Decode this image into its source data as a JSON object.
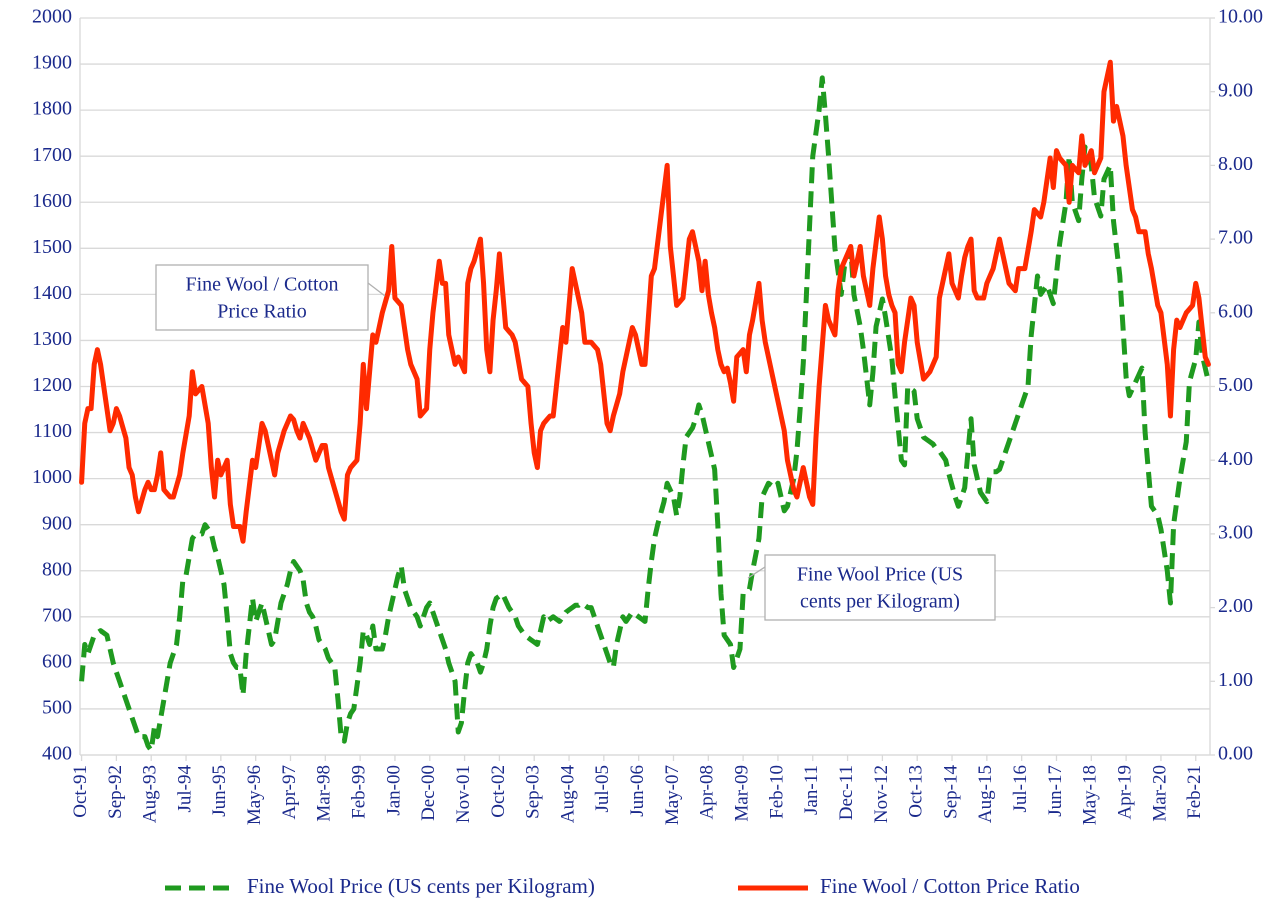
{
  "chart_data": {
    "type": "line",
    "categories": [
      "Oct-91",
      null,
      null,
      null,
      null,
      null,
      null,
      null,
      null,
      null,
      null,
      "Sep-92",
      null,
      null,
      null,
      null,
      null,
      null,
      null,
      null,
      null,
      null,
      "Aug-93",
      null,
      null,
      null,
      null,
      null,
      null,
      null,
      null,
      null,
      null,
      "Jul-94",
      null,
      null,
      null,
      null,
      null,
      null,
      null,
      null,
      null,
      null,
      "Jun-95",
      null,
      null,
      null,
      null,
      null,
      null,
      null,
      null,
      null,
      null,
      "May-96",
      null,
      null,
      null,
      null,
      null,
      null,
      null,
      null,
      null,
      null,
      "Apr-97",
      null,
      null,
      null,
      null,
      null,
      null,
      null,
      null,
      null,
      null,
      "Mar-98",
      null,
      null,
      null,
      null,
      null,
      null,
      null,
      null,
      null,
      null,
      "Feb-99",
      null,
      null,
      null,
      null,
      null,
      null,
      null,
      null,
      null,
      null,
      "Jan-00",
      null,
      null,
      null,
      null,
      null,
      null,
      null,
      null,
      null,
      null,
      "Dec-00",
      null,
      null,
      null,
      null,
      null,
      null,
      null,
      null,
      null,
      null,
      "Nov-01",
      null,
      null,
      null,
      null,
      null,
      null,
      null,
      null,
      null,
      null,
      "Oct-02",
      null,
      null,
      null,
      null,
      null,
      null,
      null,
      null,
      null,
      null,
      "Sep-03",
      null,
      null,
      null,
      null,
      null,
      null,
      null,
      null,
      null,
      null,
      "Aug-04",
      null,
      null,
      null,
      null,
      null,
      null,
      null,
      null,
      null,
      null,
      "Jul-05",
      null,
      null,
      null,
      null,
      null,
      null,
      null,
      null,
      null,
      null,
      "Jun-06",
      null,
      null,
      null,
      null,
      null,
      null,
      null,
      null,
      null,
      null,
      "May-07",
      null,
      null,
      null,
      null,
      null,
      null,
      null,
      null,
      null,
      null,
      "Apr-08",
      null,
      null,
      null,
      null,
      null,
      null,
      null,
      null,
      null,
      null,
      "Mar-09",
      null,
      null,
      null,
      null,
      null,
      null,
      null,
      null,
      null,
      null,
      "Feb-10",
      null,
      null,
      null,
      null,
      null,
      null,
      null,
      null,
      null,
      null,
      "Jan-11",
      null,
      null,
      null,
      null,
      null,
      null,
      null,
      null,
      null,
      null,
      "Dec-11",
      null,
      null,
      null,
      null,
      null,
      null,
      null,
      null,
      null,
      null,
      "Nov-12",
      null,
      null,
      null,
      null,
      null,
      null,
      null,
      null,
      null,
      null,
      "Oct-13",
      null,
      null,
      null,
      null,
      null,
      null,
      null,
      null,
      null,
      null,
      "Sep-14",
      null,
      null,
      null,
      null,
      null,
      null,
      null,
      null,
      null,
      null,
      "Aug-15",
      null,
      null,
      null,
      null,
      null,
      null,
      null,
      null,
      null,
      null,
      "Jul-16",
      null,
      null,
      null,
      null,
      null,
      null,
      null,
      null,
      null,
      null,
      "Jun-17",
      null,
      null,
      null,
      null,
      null,
      null,
      null,
      null,
      null,
      null,
      "May-18",
      null,
      null,
      null,
      null,
      null,
      null,
      null,
      null,
      null,
      null,
      "Apr-19",
      null,
      null,
      null,
      null,
      null,
      null,
      null,
      null,
      null,
      null,
      "Mar-20",
      null,
      null,
      null,
      null,
      null,
      null,
      null,
      null,
      null,
      null,
      "Feb-21",
      null,
      null,
      null,
      null
    ],
    "series": [
      {
        "name": "Fine Wool Price (US cents per Kilogram)",
        "color": "#1f9a1f",
        "dash": true,
        "axis": "y",
        "values": [
          560,
          640,
          620,
          640,
          660,
          665,
          670,
          665,
          660,
          630,
          600,
          580,
          560,
          540,
          520,
          500,
          480,
          460,
          440,
          440,
          440,
          420,
          410,
          460,
          440,
          480,
          520,
          560,
          600,
          620,
          640,
          700,
          780,
          790,
          830,
          870,
          880,
          880,
          880,
          900,
          890,
          880,
          850,
          830,
          800,
          770,
          700,
          620,
          600,
          590,
          590,
          530,
          620,
          680,
          740,
          690,
          710,
          730,
          700,
          670,
          640,
          650,
          690,
          730,
          750,
          770,
          800,
          820,
          810,
          800,
          780,
          730,
          710,
          700,
          680,
          650,
          640,
          630,
          610,
          600,
          590,
          520,
          440,
          430,
          470,
          490,
          500,
          550,
          600,
          670,
          660,
          640,
          680,
          630,
          630,
          630,
          660,
          700,
          730,
          760,
          790,
          810,
          760,
          740,
          720,
          710,
          700,
          680,
          700,
          720,
          730,
          710,
          690,
          670,
          650,
          630,
          600,
          580,
          560,
          450,
          470,
          540,
          600,
          620,
          610,
          600,
          580,
          600,
          630,
          680,
          720,
          740,
          745,
          750,
          735,
          720,
          710,
          700,
          680,
          670,
          660,
          655,
          650,
          645,
          640,
          670,
          700,
          690,
          695,
          700,
          695,
          690,
          700,
          710,
          715,
          720,
          725,
          725,
          730,
          725,
          720,
          720,
          700,
          680,
          660,
          640,
          620,
          600,
          590,
          640,
          670,
          700,
          690,
          700,
          710,
          705,
          700,
          695,
          690,
          760,
          820,
          870,
          900,
          925,
          950,
          990,
          975,
          960,
          920,
          960,
          1030,
          1090,
          1100,
          1110,
          1130,
          1160,
          1140,
          1110,
          1080,
          1050,
          1020,
          900,
          750,
          660,
          650,
          640,
          590,
          610,
          630,
          750,
          755,
          760,
          800,
          835,
          870,
          960,
          975,
          990,
          985,
          980,
          990,
          960,
          930,
          940,
          970,
          1000,
          1060,
          1150,
          1250,
          1400,
          1550,
          1700,
          1750,
          1800,
          1870,
          1790,
          1700,
          1600,
          1500,
          1450,
          1400,
          1460,
          1480,
          1500,
          1400,
          1365,
          1330,
          1280,
          1220,
          1160,
          1230,
          1330,
          1360,
          1390,
          1350,
          1305,
          1260,
          1180,
          1110,
          1040,
          1030,
          1200,
          1195,
          1190,
          1130,
          1110,
          1090,
          1085,
          1080,
          1075,
          1065,
          1060,
          1050,
          1040,
          1010,
          985,
          960,
          940,
          960,
          980,
          1055,
          1130,
          1030,
          1000,
          970,
          960,
          950,
          1010,
          1015,
          1015,
          1020,
          1040,
          1060,
          1080,
          1100,
          1120,
          1140,
          1160,
          1180,
          1200,
          1310,
          1375,
          1440,
          1400,
          1410,
          1420,
          1400,
          1380,
          1445,
          1510,
          1555,
          1600,
          1700,
          1600,
          1580,
          1560,
          1650,
          1720,
          1700,
          1680,
          1610,
          1590,
          1570,
          1650,
          1665,
          1680,
          1560,
          1500,
          1440,
          1330,
          1220,
          1180,
          1195,
          1210,
          1225,
          1240,
          1100,
          1020,
          940,
          930,
          920,
          890,
          845,
          800,
          730,
          900,
          950,
          1000,
          1040,
          1080,
          1210,
          1235,
          1260,
          1340,
          1270,
          1240,
          1210
        ]
      },
      {
        "name": "Fine Wool / Cotton Price Ratio",
        "color": "#ff2a00",
        "dash": false,
        "axis": "y2",
        "values": [
          3.7,
          4.5,
          4.7,
          4.7,
          5.3,
          5.5,
          5.3,
          5.0,
          4.7,
          4.4,
          4.5,
          4.7,
          4.6,
          4.45,
          4.3,
          3.9,
          3.8,
          3.5,
          3.3,
          3.45,
          3.6,
          3.7,
          3.6,
          3.6,
          3.8,
          4.1,
          3.6,
          3.55,
          3.5,
          3.5,
          3.65,
          3.8,
          4.1,
          4.35,
          4.6,
          5.2,
          4.9,
          4.95,
          5.0,
          4.75,
          4.5,
          3.9,
          3.5,
          4.0,
          3.8,
          3.9,
          4.0,
          3.4,
          3.1,
          3.1,
          3.1,
          2.9,
          3.3,
          3.65,
          4.0,
          3.9,
          4.2,
          4.5,
          4.4,
          4.2,
          4.0,
          3.8,
          4.1,
          4.25,
          4.4,
          4.5,
          4.6,
          4.55,
          4.4,
          4.3,
          4.5,
          4.4,
          4.3,
          4.15,
          4.0,
          4.1,
          4.2,
          4.2,
          3.9,
          3.75,
          3.6,
          3.45,
          3.3,
          3.2,
          3.8,
          3.9,
          3.95,
          4.0,
          4.5,
          5.3,
          4.7,
          5.2,
          5.7,
          5.6,
          5.8,
          6.0,
          6.15,
          6.3,
          6.9,
          6.2,
          6.15,
          6.1,
          5.8,
          5.5,
          5.3,
          5.2,
          5.1,
          4.6,
          4.65,
          4.7,
          5.5,
          6.0,
          6.35,
          6.7,
          6.4,
          6.4,
          5.7,
          5.5,
          5.3,
          5.4,
          5.3,
          5.2,
          6.4,
          6.6,
          6.7,
          6.85,
          7.0,
          6.4,
          5.5,
          5.2,
          5.9,
          6.3,
          6.8,
          6.3,
          5.8,
          5.75,
          5.7,
          5.6,
          5.35,
          5.1,
          5.05,
          5.0,
          4.5,
          4.1,
          3.9,
          4.4,
          4.5,
          4.55,
          4.6,
          4.6,
          5.0,
          5.4,
          5.8,
          5.6,
          6.1,
          6.6,
          6.4,
          6.2,
          6.0,
          5.6,
          5.6,
          5.6,
          5.55,
          5.5,
          5.3,
          4.9,
          4.5,
          4.4,
          4.6,
          4.75,
          4.9,
          5.2,
          5.4,
          5.6,
          5.8,
          5.7,
          5.5,
          5.3,
          5.3,
          5.9,
          6.5,
          6.6,
          6.95,
          7.3,
          7.65,
          8.0,
          6.9,
          6.5,
          6.1,
          6.15,
          6.2,
          6.6,
          7.0,
          7.1,
          6.9,
          6.7,
          6.3,
          6.7,
          6.25,
          6.0,
          5.8,
          5.5,
          5.3,
          5.2,
          5.25,
          5.05,
          4.8,
          5.4,
          5.45,
          5.5,
          5.2,
          5.7,
          5.9,
          6.15,
          6.4,
          5.9,
          5.6,
          5.4,
          5.2,
          5.0,
          4.8,
          4.6,
          4.4,
          4.0,
          3.8,
          3.6,
          3.5,
          3.7,
          3.9,
          3.7,
          3.5,
          3.4,
          4.3,
          5.0,
          5.55,
          6.1,
          5.9,
          5.8,
          5.7,
          6.3,
          6.6,
          6.7,
          6.8,
          6.9,
          6.5,
          6.7,
          6.9,
          6.5,
          6.3,
          6.1,
          6.6,
          6.95,
          7.3,
          7.0,
          6.5,
          6.25,
          6.1,
          6.0,
          5.3,
          5.2,
          5.6,
          5.9,
          6.2,
          6.1,
          5.6,
          5.35,
          5.1,
          5.15,
          5.2,
          5.3,
          5.4,
          6.2,
          6.4,
          6.6,
          6.8,
          6.4,
          6.3,
          6.2,
          6.5,
          6.75,
          6.9,
          7.0,
          6.3,
          6.2,
          6.2,
          6.2,
          6.4,
          6.5,
          6.6,
          6.8,
          7.0,
          6.8,
          6.6,
          6.4,
          6.35,
          6.3,
          6.6,
          6.6,
          6.6,
          6.85,
          7.1,
          7.4,
          7.35,
          7.3,
          7.5,
          7.8,
          8.1,
          7.7,
          8.2,
          8.1,
          8.05,
          8.0,
          7.5,
          8.0,
          7.95,
          7.9,
          8.4,
          8.0,
          8.1,
          8.2,
          7.9,
          8.0,
          8.1,
          9.0,
          9.2,
          9.4,
          8.6,
          8.8,
          8.6,
          8.4,
          8.0,
          7.7,
          7.4,
          7.3,
          7.1,
          7.1,
          7.1,
          6.8,
          6.6,
          6.35,
          6.1,
          6.0,
          5.65,
          5.3,
          4.6,
          5.5,
          5.9,
          5.8,
          5.9,
          6.0,
          6.05,
          6.1,
          6.4,
          6.2,
          5.8,
          5.4,
          5.3
        ]
      }
    ],
    "ylim": [
      400,
      2000
    ],
    "yticks": [
      400,
      500,
      600,
      700,
      800,
      900,
      1000,
      1100,
      1200,
      1300,
      1400,
      1500,
      1600,
      1700,
      1800,
      1900,
      2000
    ],
    "y2lim": [
      0,
      10
    ],
    "y2ticks": [
      {
        "value": 0,
        "label": "0.00"
      },
      {
        "value": 1,
        "label": "1.00"
      },
      {
        "value": 2,
        "label": "2.00"
      },
      {
        "value": 3,
        "label": "3.00"
      },
      {
        "value": 4,
        "label": "4.00"
      },
      {
        "value": 5,
        "label": "5.00"
      },
      {
        "value": 6,
        "label": "6.00"
      },
      {
        "value": 7,
        "label": "7.00"
      },
      {
        "value": 8,
        "label": "8.00"
      },
      {
        "value": 9,
        "label": "9.00"
      },
      {
        "value": 10,
        "label": "10.00"
      }
    ],
    "grid": true,
    "legend": "bottom",
    "annotations": [
      {
        "text": [
          "Fine Wool / Cotton",
          "Price Ratio"
        ]
      },
      {
        "text": [
          "Fine Wool Price (US",
          "cents per Kilogram)"
        ]
      }
    ]
  }
}
